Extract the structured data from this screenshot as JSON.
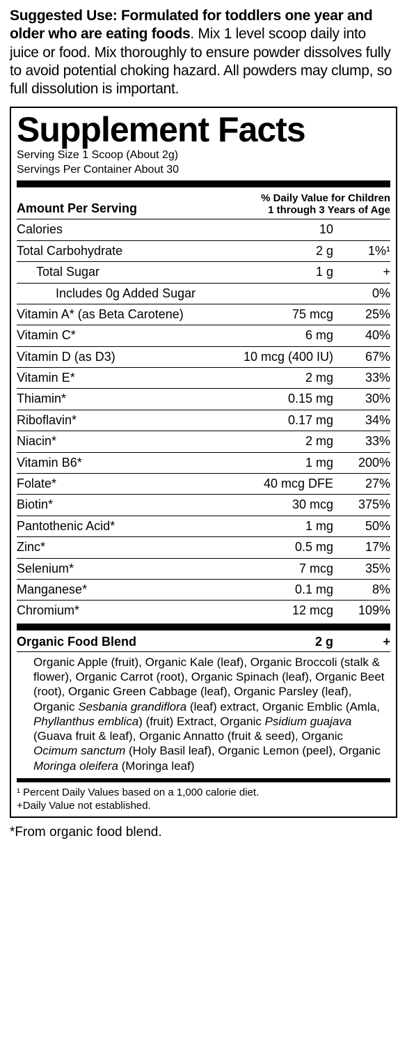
{
  "suggested_use": {
    "bold": "Suggested Use: Formulated for toddlers one year and older who are eating foods",
    "rest": ". Mix 1 level scoop daily into juice or food. Mix thoroughly to ensure powder dissolves fully to avoid potential choking hazard. All powders may clump, so full dissolution is important."
  },
  "panel": {
    "title": "Supplement Facts",
    "serving_size": "Serving Size 1 Scoop (About 2g)",
    "servings_per": "Servings Per Container About 30",
    "header_left": "Amount Per Serving",
    "header_right_l1": "% Daily Value for Children",
    "header_right_l2": "1 through 3 Years of Age",
    "rows": [
      {
        "name": "Calories",
        "amount": "10",
        "dv": "",
        "indent": 0
      },
      {
        "name": "Total Carbohydrate",
        "amount": "2 g",
        "dv": "1%¹",
        "indent": 0
      },
      {
        "name": "Total Sugar",
        "amount": "1 g",
        "dv": "+",
        "indent": 1
      },
      {
        "name": "Includes 0g Added Sugar",
        "amount": "",
        "dv": "0%",
        "indent": 2
      },
      {
        "name": "Vitamin A* (as Beta Carotene)",
        "amount": "75 mcg",
        "dv": "25%",
        "indent": 0
      },
      {
        "name": "Vitamin C*",
        "amount": "6 mg",
        "dv": "40%",
        "indent": 0
      },
      {
        "name": "Vitamin D (as D3)",
        "amount": "10 mcg (400 IU)",
        "dv": "67%",
        "indent": 0
      },
      {
        "name": "Vitamin E*",
        "amount": "2 mg",
        "dv": "33%",
        "indent": 0
      },
      {
        "name": "Thiamin*",
        "amount": "0.15 mg",
        "dv": "30%",
        "indent": 0
      },
      {
        "name": "Riboflavin*",
        "amount": "0.17 mg",
        "dv": "34%",
        "indent": 0
      },
      {
        "name": "Niacin*",
        "amount": "2 mg",
        "dv": "33%",
        "indent": 0
      },
      {
        "name": "Vitamin B6*",
        "amount": "1 mg",
        "dv": "200%",
        "indent": 0
      },
      {
        "name": "Folate*",
        "amount": "40 mcg DFE",
        "dv": "27%",
        "indent": 0
      },
      {
        "name": "Biotin*",
        "amount": "30 mcg",
        "dv": "375%",
        "indent": 0
      },
      {
        "name": "Pantothenic Acid*",
        "amount": "1 mg",
        "dv": "50%",
        "indent": 0
      },
      {
        "name": "Zinc*",
        "amount": "0.5 mg",
        "dv": "17%",
        "indent": 0
      },
      {
        "name": "Selenium*",
        "amount": "7 mcg",
        "dv": "35%",
        "indent": 0
      },
      {
        "name": "Manganese*",
        "amount": "0.1 mg",
        "dv": "8%",
        "indent": 0
      },
      {
        "name": "Chromium*",
        "amount": "12 mcg",
        "dv": "109%",
        "indent": 0
      }
    ],
    "blend": {
      "name": "Organic Food Blend",
      "amount": "2 g",
      "dv": "+",
      "ingredients_html": "Organic Apple (fruit), Organic Kale (leaf), Organic Broccoli (stalk & flower), Organic Carrot (root), Organic Spinach (leaf), Organic Beet (root), Organic Green Cabbage (leaf), Organic Parsley (leaf), Organic <em>Sesbania grandiflora</em> (leaf) extract, Organic Emblic (Amla, <em>Phyllanthus emblica</em>) (fruit) Extract, Organic <em>Psidium guajava</em> (Guava fruit & leaf), Organic Annatto (fruit & seed), Organic <em>Ocimum sanctum</em> (Holy Basil leaf), Organic Lemon (peel), Organic <em>Moringa oleifera</em> (Moringa leaf)"
    },
    "footnote1": "¹ Percent Daily Values based on a 1,000 calorie diet.",
    "footnote2": "+Daily Value not established."
  },
  "bottom_note": "*From organic food blend."
}
